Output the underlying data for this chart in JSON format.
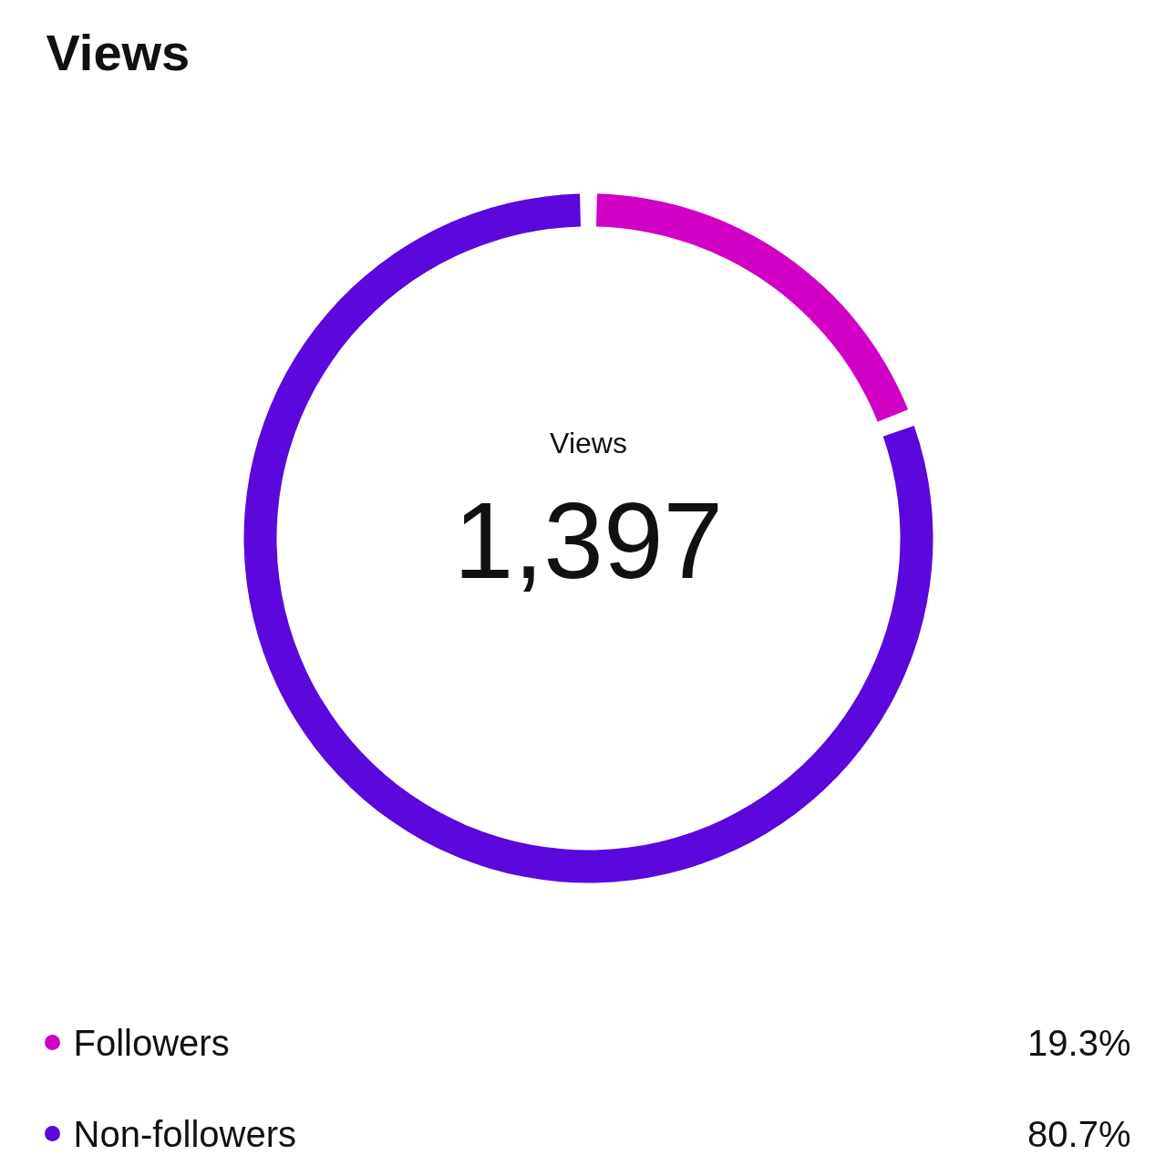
{
  "chart_data": {
    "type": "donut",
    "title": "Views",
    "categories": [
      "Followers",
      "Non-followers"
    ],
    "values": [
      19.3,
      80.7
    ],
    "colors": [
      "#d000c4",
      "#5a08dc"
    ],
    "value_labels": [
      "19.3%",
      "80.7%"
    ],
    "legend": "bottom",
    "annotations": [
      "Views",
      "1,397"
    ]
  }
}
